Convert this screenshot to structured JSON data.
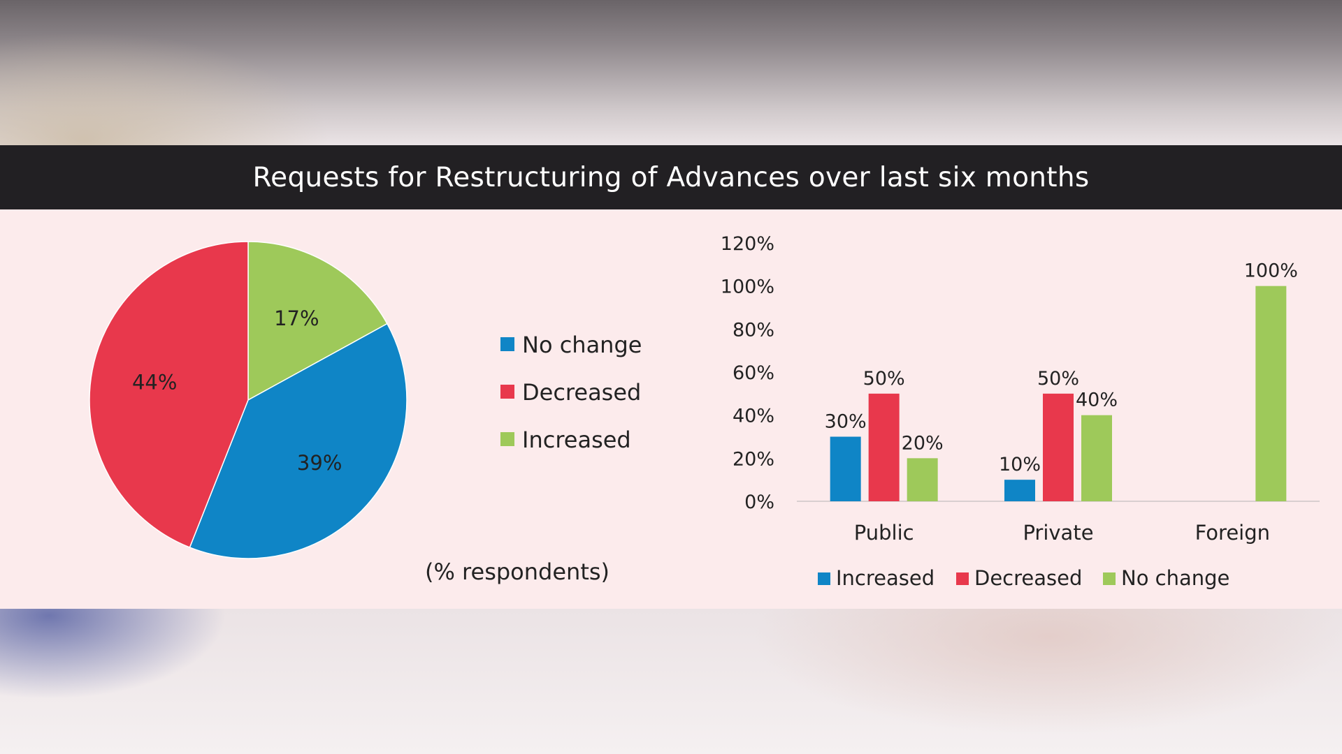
{
  "title": "Requests for Restructuring of Advances over last six months",
  "colors": {
    "blue": "#0f85c6",
    "red": "#e8384c",
    "green": "#9ec95a",
    "title_bar": "#222023",
    "panel": "#fcebec"
  },
  "chart_data": [
    {
      "type": "pie",
      "title": "",
      "note": "(% respondents)",
      "slices": [
        {
          "label": "Increased",
          "value": 17,
          "display": "17%",
          "color": "#9ec95a"
        },
        {
          "label": "No change",
          "value": 39,
          "display": "39%",
          "color": "#0f85c6"
        },
        {
          "label": "Decreased",
          "value": 44,
          "display": "44%",
          "color": "#e8384c"
        }
      ],
      "legend": {
        "placement": "right",
        "entries": [
          {
            "label": "No change",
            "color": "#0f85c6"
          },
          {
            "label": "Decreased",
            "color": "#e8384c"
          },
          {
            "label": "Increased",
            "color": "#9ec95a"
          }
        ]
      }
    },
    {
      "type": "bar",
      "title": "",
      "categories": [
        "Public",
        "Private",
        "Foreign"
      ],
      "series": [
        {
          "name": "Increased",
          "color": "#0f85c6",
          "values": [
            30,
            10,
            0
          ],
          "labels": [
            "30%",
            "10%",
            ""
          ]
        },
        {
          "name": "Decreased",
          "color": "#e8384c",
          "values": [
            50,
            50,
            0
          ],
          "labels": [
            "50%",
            "50%",
            ""
          ]
        },
        {
          "name": "No change",
          "color": "#9ec95a",
          "values": [
            20,
            40,
            100
          ],
          "labels": [
            "20%",
            "40%",
            "100%"
          ]
        }
      ],
      "ylim": [
        0,
        120
      ],
      "yticks": [
        0,
        20,
        40,
        60,
        80,
        100,
        120
      ],
      "ytick_labels": [
        "0%",
        "20%",
        "40%",
        "60%",
        "80%",
        "100%",
        "120%"
      ],
      "grid": false,
      "legend": {
        "placement": "bottom"
      }
    }
  ]
}
